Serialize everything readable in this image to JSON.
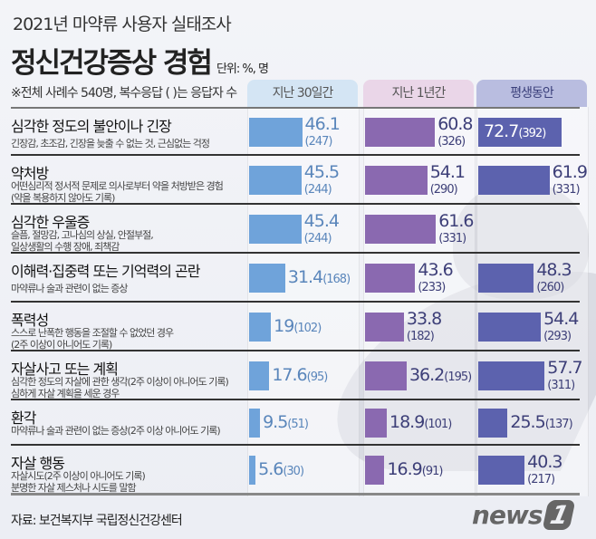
{
  "header": {
    "subtitle": "2021년 마약류 사용자 실태조사",
    "title": "정신건강증상 경험",
    "unit": "단위: %, 명",
    "note": "※전체 사례수 540명, 복수응답 ( )는 응답자 수"
  },
  "source": "자료: 보건복지부 국립정신건강센터",
  "logo": {
    "text": "news",
    "mark": "1"
  },
  "colors": {
    "col0": "#6fa3da",
    "col1": "#8a69b0",
    "col2": "#5c62ae",
    "head0": "#d4e5f4",
    "head1": "#ead6e8",
    "head2": "#b9bde0"
  },
  "chart_data": {
    "type": "bar",
    "orientation": "horizontal",
    "series": [
      {
        "name": "지난 30일간"
      },
      {
        "name": "지난 1년간"
      },
      {
        "name": "평생동안"
      }
    ],
    "categories": [
      {
        "title": "심각한 정도의 불안이나 긴장",
        "desc": "긴장감, 초조감, 긴장을 늦출 수 없는 것, 근심없는 걱정",
        "values": [
          46.1,
          60.8,
          72.7
        ],
        "counts": [
          "(247)",
          "(326)",
          "(392)"
        ]
      },
      {
        "title": "약처방",
        "desc": "어떤심리적 정서적 문제로 의사로부터 약을 처방받은 경험\n(약을 복용하지 않아도 기록)",
        "values": [
          45.5,
          54.1,
          61.9
        ],
        "counts": [
          "(244)",
          "(290)",
          "(331)"
        ]
      },
      {
        "title": "심각한 우울증",
        "desc": "슬픔, 절망감, 고나심의 상실, 안절부절,\n일상생활의 수행 장애, 죄책감",
        "values": [
          45.4,
          61.6,
          null
        ],
        "counts": [
          "(244)",
          "(331)",
          null
        ]
      },
      {
        "title": "이해력·집중력 또는 기억력의 곤란",
        "desc": "마약류나 술과 관련이 없는 증상",
        "values": [
          31.4,
          43.6,
          48.3
        ],
        "counts": [
          "(168)",
          "(233)",
          "(260)"
        ]
      },
      {
        "title": "폭력성",
        "desc": "스스로 난폭한 행동을 조절할 수 없었던 경우\n(2주 이상이 아니어도 기록)",
        "values": [
          19,
          33.8,
          54.4
        ],
        "counts": [
          "(102)",
          "(182)",
          "(293)"
        ]
      },
      {
        "title": "자살사고 또는 계획",
        "desc": "심각한 정도의 자살에 관한 생각(2주 이상이 아니어도 기록)\n심하게 자살 계획을 세운 경우",
        "values": [
          17.6,
          36.2,
          57.7
        ],
        "counts": [
          "(95)",
          "(195)",
          "(311)"
        ]
      },
      {
        "title": "환각",
        "desc": "마약류나 술과 관련이 없는 증상(2주 이상 아니어도 기록)",
        "values": [
          9.5,
          18.9,
          25.5
        ],
        "counts": [
          "(51)",
          "(101)",
          "(137)"
        ]
      },
      {
        "title": "자살 행동",
        "desc": "자살시도(2주 이상이 아니어도 기록)\n분명한 자살 제스처나 시도를 말함",
        "values": [
          5.6,
          16.9,
          40.3
        ],
        "counts": [
          "(30)",
          "(91)",
          "(217)"
        ]
      }
    ],
    "xlim": [
      0,
      100
    ]
  }
}
